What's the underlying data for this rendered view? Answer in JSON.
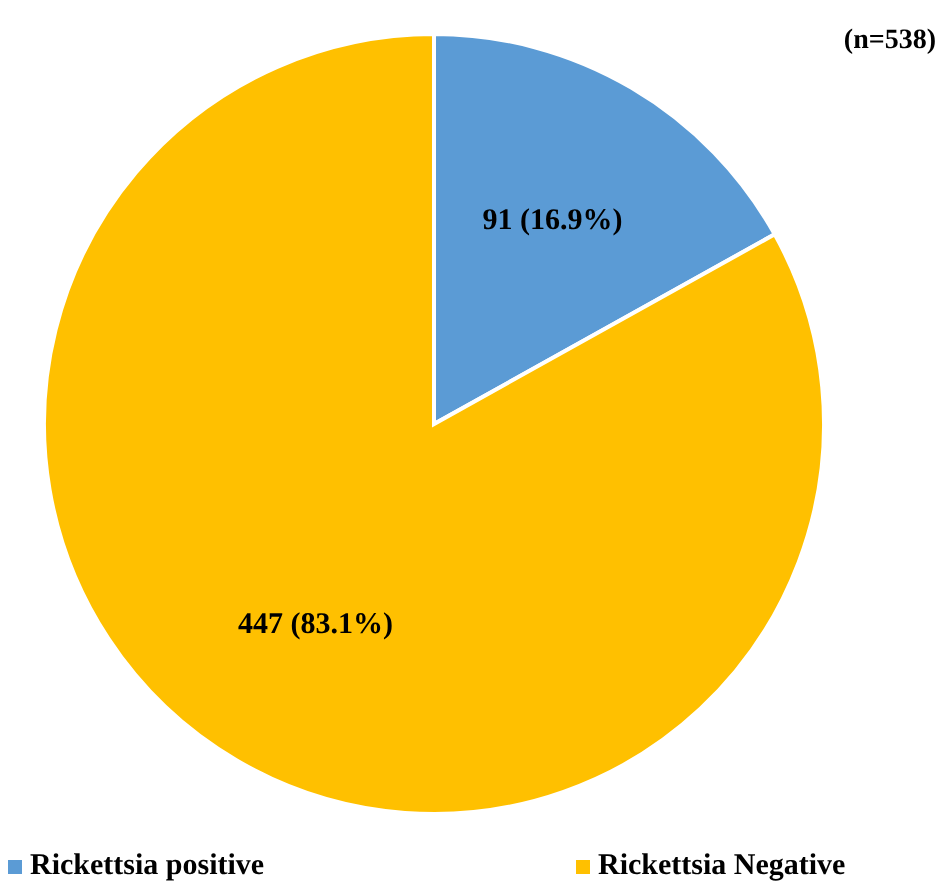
{
  "chart_data": {
    "type": "pie",
    "categories": [
      "Rickettsia positive",
      "Rickettsia Negative"
    ],
    "values": [
      91,
      447
    ],
    "colors": [
      "#5b9bd5",
      "#ffc000"
    ],
    "value_labels": [
      "91 (16.9%)",
      "447 (83.1%)"
    ],
    "annotations": [
      "(n=538)"
    ],
    "legend": "bottom"
  }
}
